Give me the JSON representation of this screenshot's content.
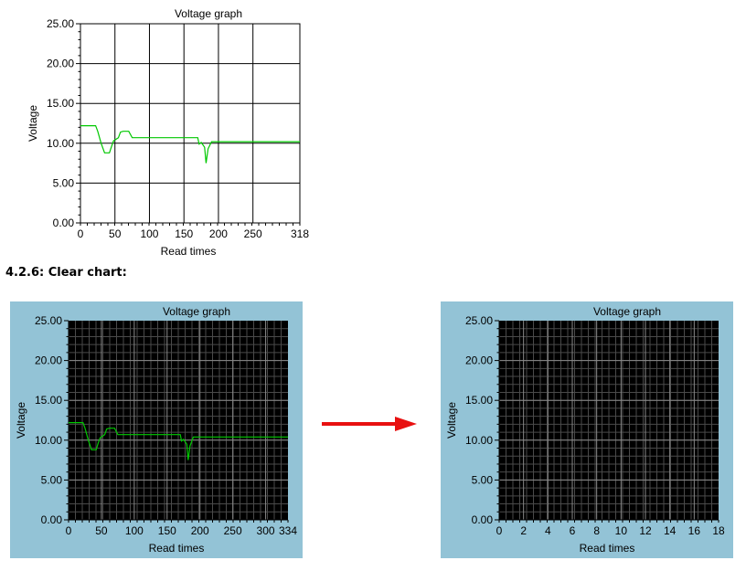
{
  "section": {
    "heading": "4.2.6: Clear chart:"
  },
  "theme": {
    "panel_blue": "#93c3d6",
    "plot_black": "#000000",
    "series_green": "#00c800",
    "arrow_red": "#e81010"
  },
  "chart_data": [
    {
      "type": "line",
      "title": "Voltage graph",
      "xlabel": "Read times",
      "ylabel": "Voltage",
      "xlim": [
        0,
        318
      ],
      "ylim": [
        0,
        25
      ],
      "x_ticks": [
        "0",
        "50",
        "100",
        "150",
        "200",
        "250",
        "318"
      ],
      "y_ticks": [
        "0.00",
        "5.00",
        "10.00",
        "15.00",
        "20.00",
        "25.00"
      ],
      "theme": "light",
      "grid": true,
      "series": [
        {
          "x": [
            0,
            22,
            25,
            30,
            35,
            42,
            45,
            48,
            55,
            58,
            62,
            70,
            75,
            80,
            170,
            172,
            175,
            180,
            182,
            185,
            190,
            318
          ],
          "y": [
            12.2,
            12.2,
            11.5,
            10.0,
            8.8,
            8.8,
            9.6,
            10.3,
            10.7,
            11.4,
            11.5,
            11.5,
            10.7,
            10.7,
            10.7,
            9.9,
            10.1,
            9.5,
            7.5,
            9.3,
            10.2,
            10.2
          ]
        }
      ]
    },
    {
      "type": "line",
      "title": "Voltage graph",
      "xlabel": "Read times",
      "ylabel": "Voltage",
      "xlim": [
        0,
        334
      ],
      "ylim": [
        0,
        25
      ],
      "x_ticks": [
        "0",
        "50",
        "100",
        "150",
        "200",
        "250",
        "300",
        "334"
      ],
      "y_ticks": [
        "0.00",
        "5.00",
        "10.00",
        "15.00",
        "20.00",
        "25.00"
      ],
      "theme": "dark",
      "grid": true,
      "series": [
        {
          "x": [
            0,
            22,
            25,
            30,
            35,
            42,
            45,
            48,
            55,
            58,
            62,
            70,
            75,
            80,
            170,
            172,
            175,
            180,
            182,
            185,
            190,
            334
          ],
          "y": [
            12.2,
            12.2,
            11.5,
            10.0,
            8.8,
            8.8,
            9.6,
            10.3,
            10.7,
            11.4,
            11.5,
            11.5,
            10.7,
            10.7,
            10.7,
            9.9,
            10.1,
            9.5,
            7.5,
            9.3,
            10.4,
            10.4
          ]
        }
      ]
    },
    {
      "type": "line",
      "title": "Voltage graph",
      "xlabel": "Read times",
      "ylabel": "Voltage",
      "xlim": [
        0,
        18
      ],
      "ylim": [
        0,
        25
      ],
      "x_ticks": [
        "0",
        "2",
        "4",
        "6",
        "8",
        "10",
        "12",
        "14",
        "16",
        "18"
      ],
      "y_ticks": [
        "0.00",
        "5.00",
        "10.00",
        "15.00",
        "20.00",
        "25.00"
      ],
      "theme": "dark",
      "grid": true,
      "series": []
    }
  ]
}
